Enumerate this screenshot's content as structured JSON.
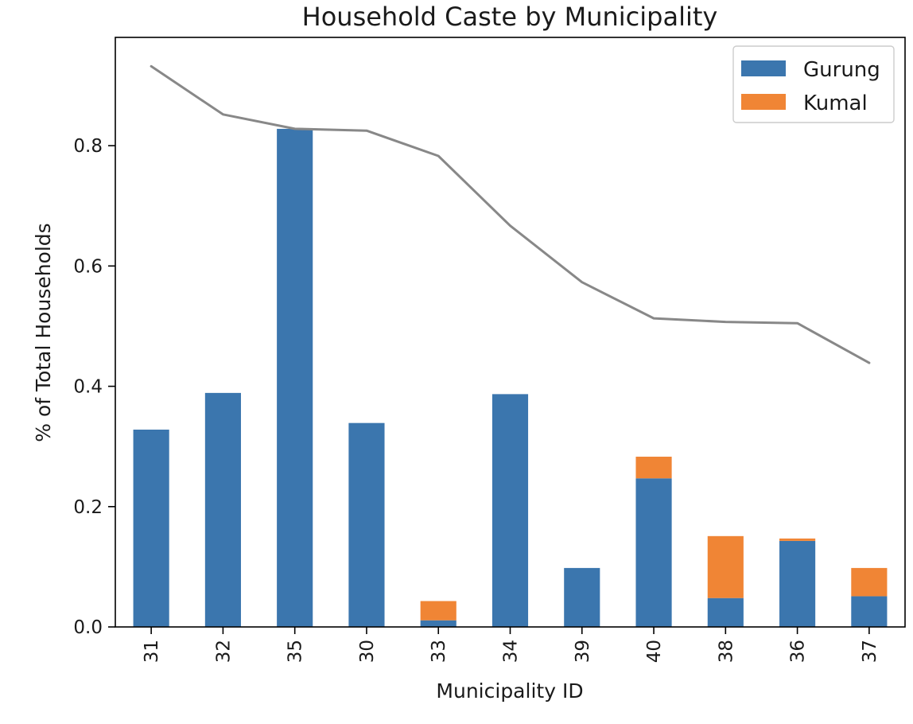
{
  "chart_data": {
    "type": "bar",
    "stacked": true,
    "title": "Household Caste by Municipality",
    "xlabel": "Municipality ID",
    "ylabel": "% of Total Households",
    "categories": [
      "31",
      "32",
      "35",
      "30",
      "33",
      "34",
      "39",
      "40",
      "38",
      "36",
      "37"
    ],
    "series": [
      {
        "name": "Gurung",
        "color": "#3b76ae",
        "values": [
          0.328,
          0.389,
          0.828,
          0.339,
          0.011,
          0.387,
          0.098,
          0.247,
          0.048,
          0.143,
          0.051
        ]
      },
      {
        "name": "Kumal",
        "color": "#f08535",
        "values": [
          0.0,
          0.0,
          0.0,
          0.0,
          0.032,
          0.0,
          0.0,
          0.036,
          0.103,
          0.004,
          0.047
        ]
      }
    ],
    "line": {
      "color": "#888888",
      "values": [
        0.932,
        0.852,
        0.828,
        0.825,
        0.783,
        0.667,
        0.573,
        0.513,
        0.507,
        0.505,
        0.439
      ]
    },
    "ylim": [
      0.0,
      0.98
    ],
    "yticks": [
      "0.0",
      "0.2",
      "0.4",
      "0.6",
      "0.8"
    ],
    "ytick_values": [
      0.0,
      0.2,
      0.4,
      0.6,
      0.8
    ],
    "grid": false,
    "legend": "top-right"
  }
}
